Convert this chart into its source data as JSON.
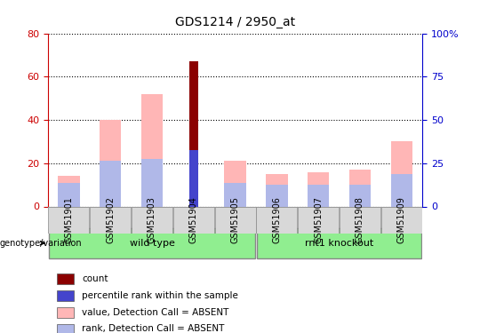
{
  "title": "GDS1214 / 2950_at",
  "samples": [
    "GSM51901",
    "GSM51902",
    "GSM51903",
    "GSM51904",
    "GSM51905",
    "GSM51906",
    "GSM51907",
    "GSM51908",
    "GSM51909"
  ],
  "value_absent": [
    14,
    40,
    52,
    0,
    21,
    15,
    16,
    17,
    30
  ],
  "rank_absent": [
    11,
    21,
    22,
    0,
    11,
    10,
    10,
    10,
    15
  ],
  "count": [
    0,
    0,
    0,
    67,
    0,
    0,
    0,
    0,
    0
  ],
  "percentile": [
    0,
    0,
    0,
    26,
    0,
    0,
    0,
    0,
    0
  ],
  "left_ylim": [
    0,
    80
  ],
  "right_ylim": [
    0,
    100
  ],
  "left_yticks": [
    0,
    20,
    40,
    60,
    80
  ],
  "right_yticks": [
    0,
    25,
    50,
    75,
    100
  ],
  "right_yticklabels": [
    "0",
    "25",
    "50",
    "75",
    "100%"
  ],
  "groups": [
    {
      "label": "wild type",
      "samples": [
        "GSM51901",
        "GSM51902",
        "GSM51903",
        "GSM51904",
        "GSM51905"
      ],
      "color": "#90ee90"
    },
    {
      "label": "rnt1 knockout",
      "samples": [
        "GSM51906",
        "GSM51907",
        "GSM51908",
        "GSM51909"
      ],
      "color": "#90ee90"
    }
  ],
  "color_count": "#8B0000",
  "color_percentile": "#4444cc",
  "color_value_absent": "#ffb6b6",
  "color_rank_absent": "#b0b8e8",
  "bar_width": 0.35,
  "xlabel_color": "#333333",
  "left_axis_color": "#cc0000",
  "right_axis_color": "#0000cc",
  "legend_items": [
    {
      "label": "count",
      "color": "#8B0000"
    },
    {
      "label": "percentile rank within the sample",
      "color": "#4444cc"
    },
    {
      "label": "value, Detection Call = ABSENT",
      "color": "#ffb6b6"
    },
    {
      "label": "rank, Detection Call = ABSENT",
      "color": "#b0b8e8"
    }
  ]
}
